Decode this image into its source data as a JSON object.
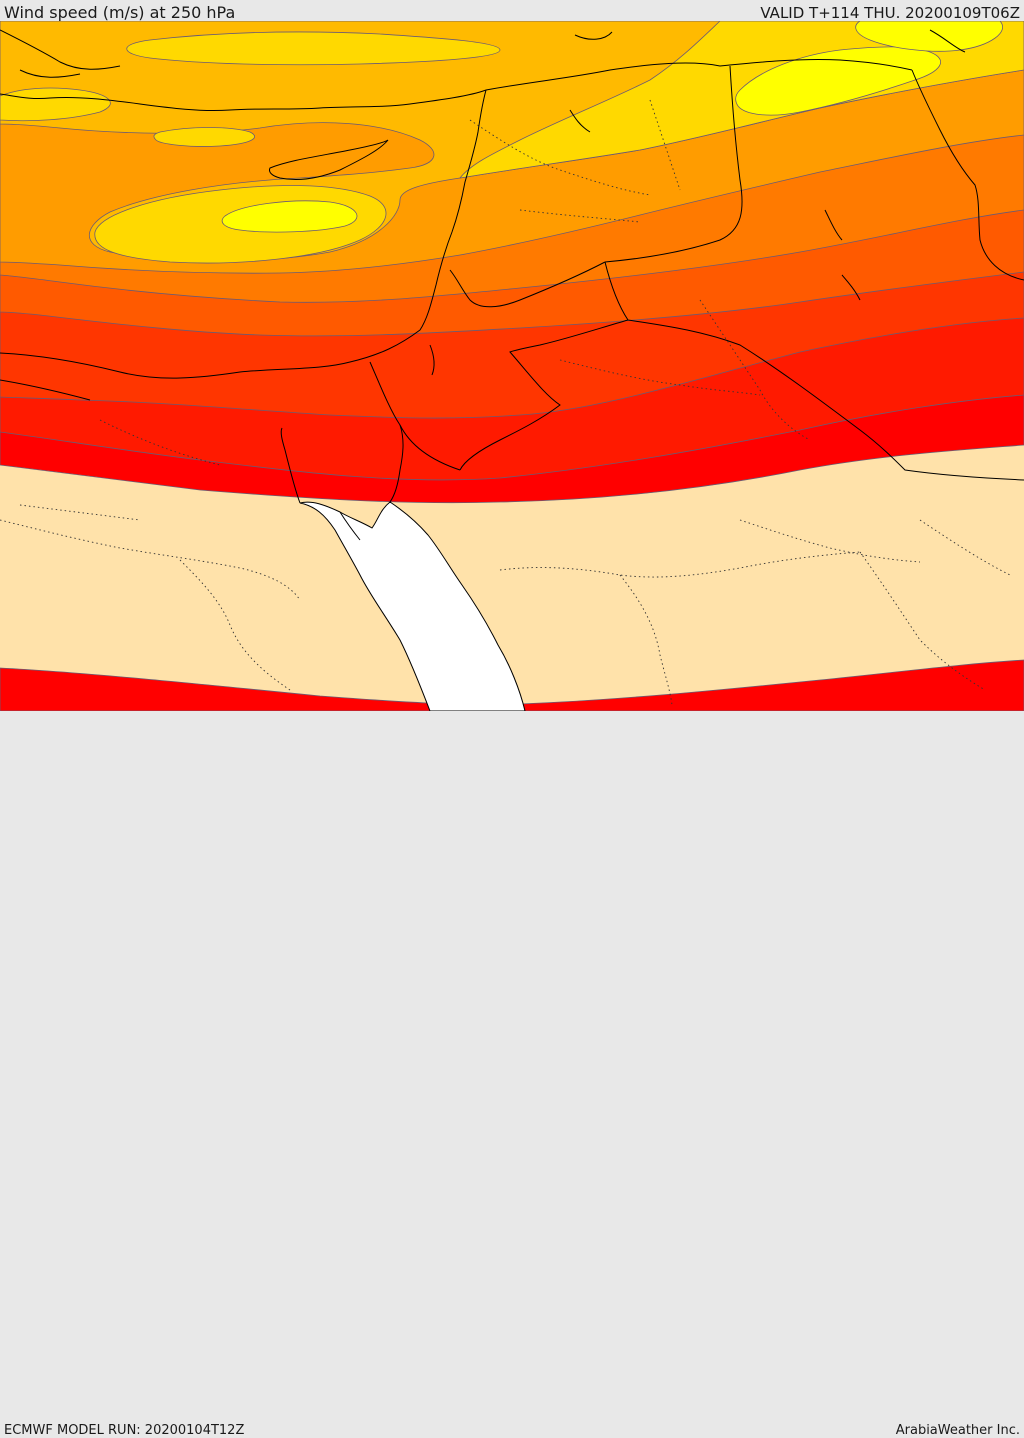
{
  "header": {
    "title": "Wind speed (m/s) at 250 hPa",
    "valid": "VALID T+114 THU. 20200109T06Z"
  },
  "footer": {
    "model_run": "ECMWF MODEL RUN: 20200104T12Z",
    "credit": "ArabiaWeather Inc."
  },
  "map": {
    "field": "wind-speed-250hPa",
    "band_colors": [
      "#ffe2aa",
      "#ff0000",
      "#ff1a00",
      "#ff3600",
      "#ff5a00",
      "#ff7a00",
      "#ff9c00",
      "#ffba00",
      "#ffd900",
      "#ffff00"
    ],
    "sea_color": "#ffffff",
    "contour_color": "#6b5b73",
    "border_color": "#000000"
  }
}
